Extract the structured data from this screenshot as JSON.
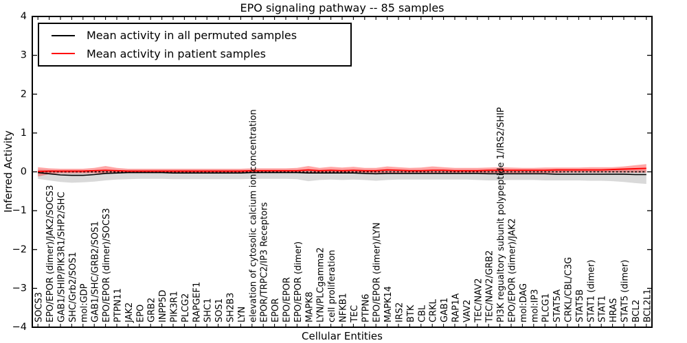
{
  "chart_data": {
    "type": "line",
    "title": "EPO signaling pathway -- 85 samples",
    "xlabel": "Cellular Entities",
    "ylabel": "Inferred Activity",
    "ylim": [
      -4,
      4
    ],
    "yticks": [
      -4,
      -3,
      -2,
      -1,
      0,
      1,
      2,
      3,
      4
    ],
    "ytick_labels": [
      "−4",
      "−3",
      "−2",
      "−1",
      "0",
      "1",
      "2",
      "3",
      "4"
    ],
    "grid": false,
    "legend_position": "upper left",
    "zero_line": {
      "y": 0,
      "style": "dashed",
      "color": "#000000"
    },
    "categories": [
      "SOCS3",
      "EPO/EPOR (dimer)/JAK2/SOCS3",
      "GAB1/SHIP/PIK3R1/SHP2/SHC",
      "SHC/Grb2/SOS1",
      "mol:GDP",
      "GAB1/SHC/GRB2/SOS1",
      "EPO/EPOR (dimer)/SOCS3",
      "PTPN11",
      "JAK2",
      "EPO",
      "GRB2",
      "INPP5D",
      "PIK3R1",
      "PLCG2",
      "RAPGEF1",
      "SHC1",
      "SOS1",
      "SH2B3",
      "LYN",
      "elevation of cytosolic calcium ion concentration",
      "EPOR/TRPC2/IP3 Receptors",
      "EPOR",
      "EPO/EPOR",
      "EPO/EPOR (dimer)",
      "MAPK8",
      "LYN/PLCgamma2",
      "cell proliferation",
      "NFKB1",
      "TEC",
      "PTPN6",
      "EPO/EPOR (dimer)/LYN",
      "MAPK14",
      "IRS2",
      "BTK",
      "CBL",
      "CRKL",
      "GAB1",
      "RAP1A",
      "VAV2",
      "TEC/NAV2",
      "TEC/NAV2/GRB2",
      "PI3K regualtory subunit polypeptide 1/IRS2/SHIP",
      "EPO/EPOR (dimer)/JAK2",
      "mol:DAG",
      "mol:IP3",
      "PLCG1",
      "STAT5A",
      "CRKL/CBL/C3G",
      "STAT5B",
      "STAT1 (dimer)",
      "STAT1",
      "HRAS",
      "STAT5 (dimer)",
      "BCL2",
      "BCL2L1"
    ],
    "series": [
      {
        "name": "Mean activity in all permuted samples",
        "color": "#000000",
        "band_color": "rgba(0,0,0,0.15)",
        "values": [
          -0.02,
          -0.05,
          -0.08,
          -0.09,
          -0.09,
          -0.07,
          -0.04,
          -0.03,
          -0.02,
          -0.02,
          -0.02,
          -0.02,
          -0.03,
          -0.03,
          -0.03,
          -0.03,
          -0.03,
          -0.03,
          -0.03,
          -0.02,
          -0.02,
          -0.02,
          -0.02,
          -0.02,
          -0.03,
          -0.03,
          -0.03,
          -0.03,
          -0.03,
          -0.04,
          -0.05,
          -0.04,
          -0.04,
          -0.04,
          -0.04,
          -0.04,
          -0.04,
          -0.04,
          -0.04,
          -0.04,
          -0.05,
          -0.05,
          -0.05,
          -0.05,
          -0.05,
          -0.05,
          -0.06,
          -0.06,
          -0.06,
          -0.06,
          -0.06,
          -0.06,
          -0.06,
          -0.07,
          -0.07
        ],
        "band_upper": [
          0.06,
          0.05,
          0.04,
          0.04,
          0.04,
          0.04,
          0.05,
          0.05,
          0.05,
          0.05,
          0.05,
          0.05,
          0.05,
          0.05,
          0.05,
          0.05,
          0.05,
          0.05,
          0.05,
          0.05,
          0.05,
          0.05,
          0.05,
          0.05,
          0.04,
          0.05,
          0.05,
          0.05,
          0.05,
          0.05,
          0.04,
          0.05,
          0.05,
          0.05,
          0.05,
          0.05,
          0.05,
          0.05,
          0.05,
          0.05,
          0.05,
          0.05,
          0.05,
          0.05,
          0.05,
          0.05,
          0.05,
          0.05,
          0.05,
          0.05,
          0.05,
          0.05,
          0.05,
          0.05,
          0.05
        ],
        "band_lower": [
          -0.18,
          -0.22,
          -0.26,
          -0.28,
          -0.27,
          -0.25,
          -0.22,
          -0.2,
          -0.19,
          -0.18,
          -0.18,
          -0.18,
          -0.19,
          -0.19,
          -0.19,
          -0.19,
          -0.19,
          -0.19,
          -0.19,
          -0.18,
          -0.18,
          -0.18,
          -0.18,
          -0.19,
          -0.24,
          -0.21,
          -0.2,
          -0.21,
          -0.2,
          -0.21,
          -0.23,
          -0.21,
          -0.2,
          -0.2,
          -0.2,
          -0.2,
          -0.2,
          -0.2,
          -0.2,
          -0.21,
          -0.22,
          -0.22,
          -0.21,
          -0.21,
          -0.21,
          -0.22,
          -0.22,
          -0.22,
          -0.22,
          -0.23,
          -0.23,
          -0.24,
          -0.26,
          -0.29,
          -0.31
        ]
      },
      {
        "name": "Mean activity in patient samples",
        "color": "#ff0000",
        "band_color": "rgba(255,0,0,0.35)",
        "values": [
          0.01,
          0.02,
          0.02,
          0.02,
          0.02,
          0.03,
          0.04,
          0.03,
          0.02,
          0.02,
          0.02,
          0.02,
          0.02,
          0.02,
          0.02,
          0.02,
          0.02,
          0.02,
          0.02,
          0.03,
          0.03,
          0.03,
          0.03,
          0.03,
          0.05,
          0.03,
          0.04,
          0.03,
          0.04,
          0.03,
          0.03,
          0.05,
          0.04,
          0.03,
          0.03,
          0.04,
          0.04,
          0.03,
          0.03,
          0.03,
          0.04,
          0.04,
          0.04,
          0.04,
          0.04,
          0.04,
          0.05,
          0.05,
          0.05,
          0.05,
          0.05,
          0.06,
          0.07,
          0.08,
          0.09
        ],
        "band_upper": [
          0.12,
          0.09,
          0.08,
          0.08,
          0.08,
          0.1,
          0.15,
          0.1,
          0.08,
          0.08,
          0.08,
          0.08,
          0.08,
          0.08,
          0.08,
          0.08,
          0.08,
          0.08,
          0.08,
          0.09,
          0.09,
          0.09,
          0.09,
          0.1,
          0.15,
          0.1,
          0.13,
          0.11,
          0.13,
          0.1,
          0.1,
          0.14,
          0.12,
          0.1,
          0.11,
          0.14,
          0.12,
          0.1,
          0.1,
          0.1,
          0.11,
          0.12,
          0.11,
          0.1,
          0.1,
          0.11,
          0.11,
          0.11,
          0.11,
          0.12,
          0.12,
          0.12,
          0.14,
          0.17,
          0.2
        ],
        "band_lower": [
          -0.12,
          -0.06,
          -0.04,
          -0.04,
          -0.04,
          -0.04,
          -0.05,
          -0.04,
          -0.03,
          -0.03,
          -0.03,
          -0.03,
          -0.03,
          -0.03,
          -0.03,
          -0.03,
          -0.03,
          -0.03,
          -0.03,
          -0.03,
          -0.03,
          -0.03,
          -0.03,
          -0.03,
          -0.04,
          -0.03,
          -0.03,
          -0.03,
          -0.03,
          -0.03,
          -0.03,
          -0.04,
          -0.03,
          -0.03,
          -0.03,
          -0.03,
          -0.03,
          -0.03,
          -0.03,
          -0.03,
          -0.03,
          -0.03,
          -0.03,
          -0.03,
          -0.03,
          -0.03,
          -0.03,
          -0.02,
          -0.02,
          -0.02,
          -0.02,
          -0.02,
          -0.02,
          -0.02,
          -0.02
        ]
      }
    ]
  }
}
